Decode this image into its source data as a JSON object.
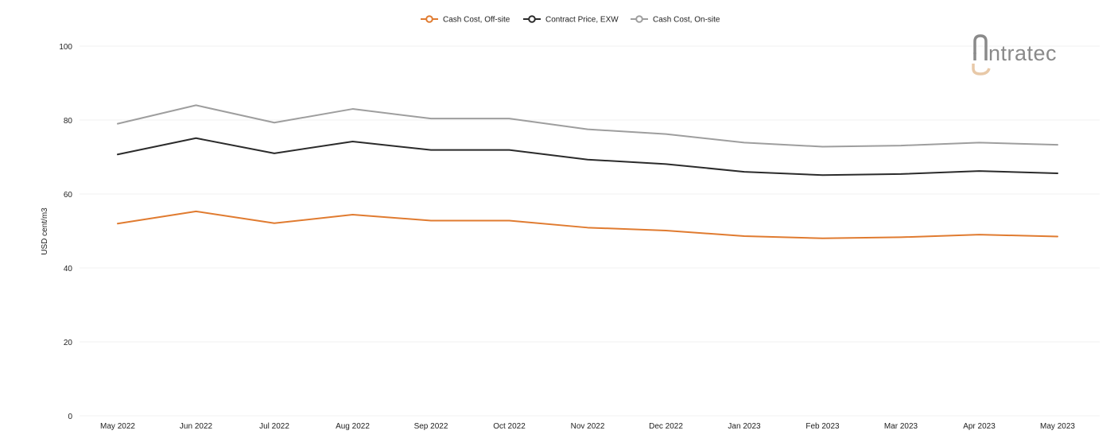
{
  "logo": {
    "text": "ntratec",
    "colors": {
      "gray": "#8a8a8a",
      "accent": "#e8c9a8"
    }
  },
  "chart_data": {
    "type": "line",
    "title": "",
    "xlabel": "",
    "ylabel": "USD cent/m3",
    "ylim": [
      0,
      100
    ],
    "yticks": [
      0,
      20,
      40,
      60,
      80,
      100
    ],
    "grid": true,
    "legend_position": "top-center",
    "categories": [
      "May 2022",
      "Jun 2022",
      "Jul 2022",
      "Aug 2022",
      "Sep 2022",
      "Oct 2022",
      "Nov 2022",
      "Dec 2022",
      "Jan 2023",
      "Feb 2023",
      "Mar 2023",
      "Apr 2023",
      "May 2023"
    ],
    "series": [
      {
        "name": "Cash Cost, Off-site",
        "color": "#e07b30",
        "values": [
          52.0,
          55.3,
          52.1,
          54.4,
          52.8,
          52.8,
          50.9,
          50.1,
          48.6,
          48.0,
          48.3,
          49.0,
          48.5
        ]
      },
      {
        "name": "Contract Price, EXW",
        "color": "#2b2b2b",
        "values": [
          70.7,
          75.1,
          71.0,
          74.2,
          71.9,
          71.9,
          69.3,
          68.1,
          66.0,
          65.1,
          65.4,
          66.2,
          65.6
        ]
      },
      {
        "name": "Cash Cost, On-site",
        "color": "#9e9e9e",
        "values": [
          79.0,
          84.0,
          79.3,
          83.0,
          80.4,
          80.4,
          77.5,
          76.2,
          73.9,
          72.8,
          73.1,
          73.9,
          73.3
        ]
      }
    ]
  }
}
